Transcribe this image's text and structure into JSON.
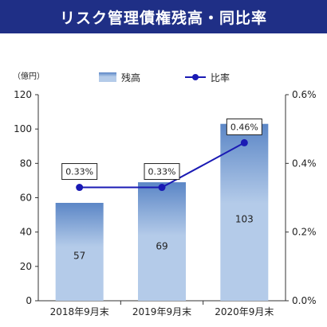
{
  "title": "リスク管理債権残高・同比率",
  "colors": {
    "banner": "#1f2f86",
    "bar_top": "#5b86c6",
    "bar_mid": "#b4cbe9",
    "line": "#1a1ab4",
    "axis": "#333333",
    "grid": "#999999"
  },
  "chart_data": {
    "type": "bar",
    "categories": [
      "2018年9月末",
      "2019年9月末",
      "2020年9月末"
    ],
    "series": [
      {
        "name": "残高",
        "type": "bar",
        "axis": "left",
        "values": [
          57,
          69,
          103
        ]
      },
      {
        "name": "比率",
        "type": "line",
        "axis": "right",
        "values": [
          0.33,
          0.33,
          0.46
        ],
        "labels": [
          "0.33%",
          "0.33%",
          "0.46%"
        ]
      }
    ],
    "y_left": {
      "unit_label": "（億円）",
      "ylim": [
        0,
        120
      ],
      "ticks": [
        0,
        20,
        40,
        60,
        80,
        100,
        120
      ]
    },
    "y_right": {
      "ylim": [
        0,
        0.6
      ],
      "ticks": [
        0,
        0.2,
        0.4,
        0.6
      ],
      "tick_labels": [
        "0.0%",
        "0.2%",
        "0.4%",
        "0.6%"
      ]
    },
    "legend": {
      "placement": "top",
      "items": [
        "残高",
        "比率"
      ]
    },
    "grid": false
  }
}
